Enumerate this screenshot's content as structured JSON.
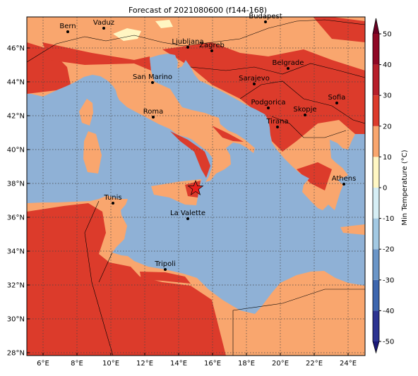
{
  "title": "Forecast of 2021080600 (f144-168)",
  "lat_ticks": [
    "28°N",
    "30°N",
    "32°N",
    "34°N",
    "36°N",
    "38°N",
    "40°N",
    "42°N",
    "44°N",
    "46°N"
  ],
  "lon_ticks": [
    "6°E",
    "8°E",
    "10°E",
    "12°E",
    "14°E",
    "16°E",
    "18°E",
    "20°E",
    "22°E",
    "24°E"
  ],
  "cities": [
    "Bern",
    "Vaduz",
    "Budapest",
    "Ljubljana",
    "Zagreb",
    "Belgrade",
    "San Marino",
    "Sarajevo",
    "Podgorica",
    "Skopje",
    "Sofia",
    "Roma",
    "Tirana",
    "Athens",
    "Tunis",
    "La Valette",
    "Tripoli"
  ],
  "colorbar": {
    "label": "Min Temperature (°C)",
    "lim": [
      -50,
      50
    ],
    "ticks": [
      -50,
      -40,
      -30,
      -20,
      -10,
      0,
      10,
      20,
      30,
      40,
      50
    ],
    "colors": [
      "#1a1877",
      "#2c3391",
      "#3d66ae",
      "#6b96c8",
      "#a3c9e3",
      "#d6eef5",
      "#fff7c4",
      "#f9a66e",
      "#dc3b2b",
      "#b71f2a",
      "#8f0824",
      "#6a0022"
    ]
  }
}
